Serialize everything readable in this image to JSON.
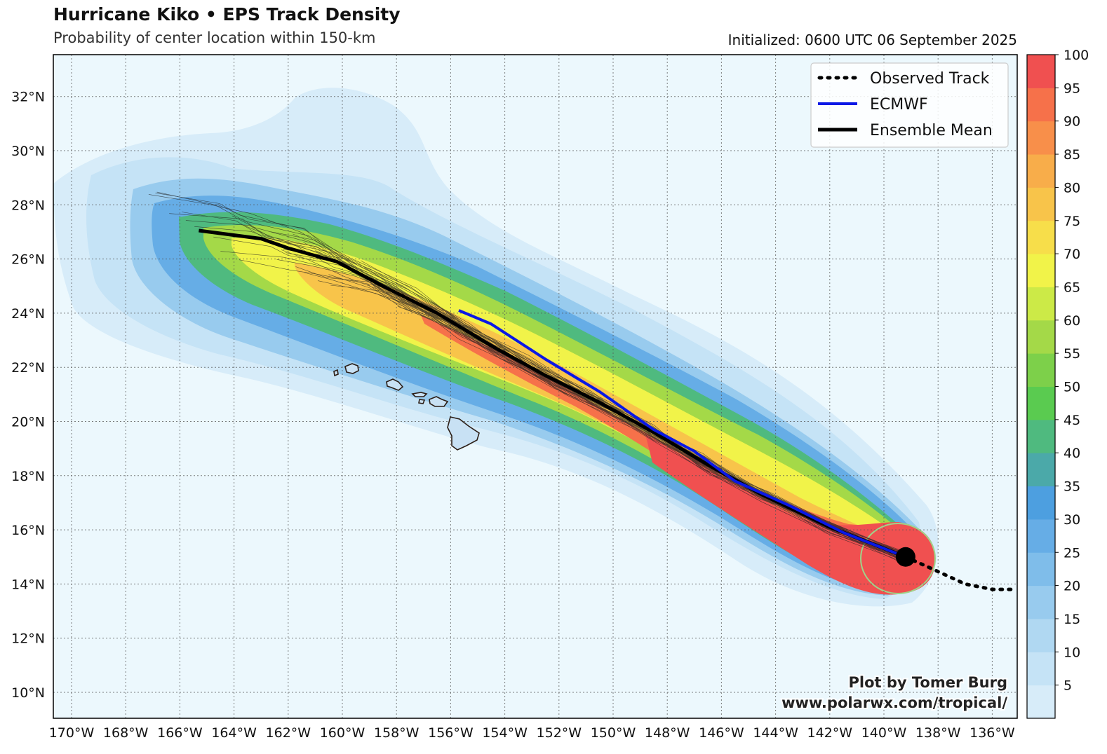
{
  "header": {
    "title": "Hurricane Kiko • EPS Track Density",
    "subtitle": "Probability of center location within 150-km",
    "initialized": "Initialized: 0600 UTC 06 September 2025"
  },
  "axes": {
    "lon_ticks": [
      "170°W",
      "168°W",
      "166°W",
      "164°W",
      "162°W",
      "160°W",
      "158°W",
      "156°W",
      "154°W",
      "152°W",
      "150°W",
      "148°W",
      "146°W",
      "144°W",
      "142°W",
      "140°W",
      "138°W",
      "136°W"
    ],
    "lat_ticks": [
      "10°N",
      "12°N",
      "14°N",
      "16°N",
      "18°N",
      "20°N",
      "22°N",
      "24°N",
      "26°N",
      "28°N",
      "30°N",
      "32°N"
    ]
  },
  "legend": {
    "observed": "Observed Track",
    "ecmwf": "ECMWF",
    "mean": "Ensemble Mean",
    "colors": {
      "observed": "#000000",
      "ecmwf": "#0a18e6",
      "mean": "#000000"
    }
  },
  "colorbar": {
    "labels": [
      "5",
      "10",
      "15",
      "20",
      "25",
      "30",
      "35",
      "40",
      "45",
      "50",
      "55",
      "60",
      "65",
      "70",
      "75",
      "80",
      "85",
      "90",
      "95",
      "100"
    ],
    "colors": [
      "#d7ecf9",
      "#c5e3f6",
      "#b0d8f2",
      "#98cbee",
      "#7fbdea",
      "#66ade6",
      "#4d9fe0",
      "#4ba9a9",
      "#4fba7f",
      "#5acb50",
      "#7dd04a",
      "#a4d948",
      "#ccea47",
      "#f1f349",
      "#f7de4a",
      "#f8c44a",
      "#f8ad4a",
      "#f88f4a",
      "#f6714a",
      "#f05050"
    ]
  },
  "tracks": {
    "ensemble_mean": [
      [
        -165.3,
        27.05
      ],
      [
        -163.0,
        26.75
      ],
      [
        -162.0,
        26.4
      ],
      [
        -160.2,
        25.9
      ],
      [
        -158.5,
        25.0
      ],
      [
        -156.5,
        24.0
      ],
      [
        -154.5,
        22.8
      ],
      [
        -152.5,
        21.7
      ],
      [
        -150.5,
        20.7
      ],
      [
        -148.5,
        19.6
      ],
      [
        -146.5,
        18.4
      ],
      [
        -144.5,
        17.3
      ],
      [
        -142.0,
        16.1
      ],
      [
        -139.2,
        15.0
      ]
    ],
    "ecmwf": [
      [
        -155.7,
        24.1
      ],
      [
        -154.5,
        23.6
      ],
      [
        -152.5,
        22.3
      ],
      [
        -150.5,
        21.1
      ],
      [
        -148.5,
        19.7
      ],
      [
        -147.0,
        18.9
      ],
      [
        -145.5,
        17.8
      ],
      [
        -143.5,
        16.9
      ],
      [
        -141.5,
        15.9
      ],
      [
        -139.2,
        15.0
      ]
    ],
    "observed": [
      [
        -139.2,
        15.0
      ],
      [
        -138.2,
        14.55
      ],
      [
        -137.0,
        14.0
      ],
      [
        -136.0,
        13.8
      ],
      [
        -135.1,
        13.8
      ]
    ],
    "storm_position": [
      -139.2,
      15.0
    ]
  },
  "credit": {
    "line1": "Plot by Tomer Burg",
    "line2": "www.polarwx.com/tropical/"
  }
}
